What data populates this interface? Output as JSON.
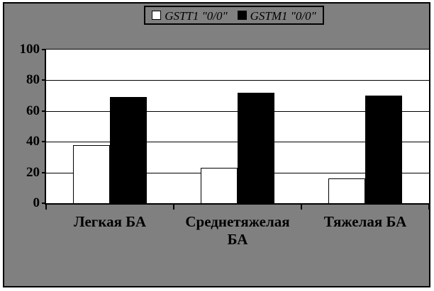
{
  "chart_data": {
    "type": "bar",
    "title": "",
    "xlabel": "",
    "ylabel": "",
    "categories": [
      "Легкая БА",
      "Среднетяжелая БА",
      "Тяжелая БА"
    ],
    "series": [
      {
        "name": "GSTT1 \"0/0\"",
        "color": "#ffffff",
        "values": [
          38,
          23,
          16
        ]
      },
      {
        "name": "GSTM1 \"0/0\"",
        "color": "#000000",
        "values": [
          69,
          72,
          70
        ]
      }
    ],
    "ylim": [
      0,
      100
    ],
    "y_ticks": [
      0,
      20,
      40,
      60,
      80,
      100
    ],
    "grid": true,
    "legend_position": "top-center"
  },
  "colors": {
    "background": "#808080",
    "plot_background": "#ffffff",
    "line": "#000000",
    "text": "#000000"
  }
}
